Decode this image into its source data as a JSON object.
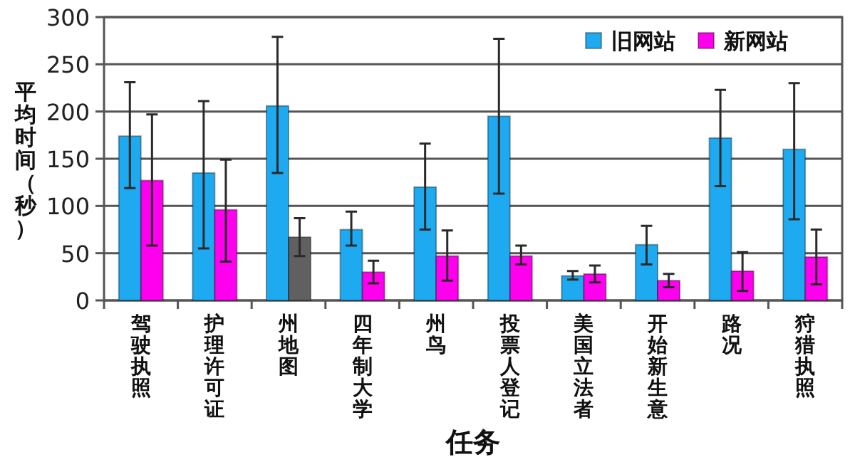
{
  "chart_data": {
    "type": "bar",
    "xlabel": "任务",
    "ylabel": "平均时间（秒）",
    "categories": [
      "驾驶执照",
      "护理许可证",
      "州地图",
      "四年制大学",
      "州鸟",
      "投票人登记",
      "美国立法者",
      "开始新生意",
      "路况",
      "狩猎执照"
    ],
    "series": [
      {
        "name": "旧网站",
        "color": "#1eaaf0",
        "values": [
          174,
          135,
          206,
          75,
          120,
          195,
          26,
          59,
          172,
          160
        ],
        "errors": [
          [
            119,
            231
          ],
          [
            55,
            211
          ],
          [
            135,
            279
          ],
          [
            58,
            94
          ],
          [
            75,
            166
          ],
          [
            113,
            277
          ],
          [
            22,
            31
          ],
          [
            38,
            79
          ],
          [
            121,
            223
          ],
          [
            86,
            230
          ]
        ]
      },
      {
        "name": "新网站",
        "color": "#ff00ee",
        "colors": [
          "#ff00ee",
          "#ff00ee",
          "#606060",
          "#ff00ee",
          "#ff00ee",
          "#ff00ee",
          "#ff00ee",
          "#ff00ee",
          "#ff00ee",
          "#ff00ee"
        ],
        "values": [
          127,
          96,
          67,
          30,
          47,
          47,
          28,
          21,
          31,
          46
        ],
        "errors": [
          [
            58,
            197
          ],
          [
            41,
            149
          ],
          [
            47,
            87
          ],
          [
            18,
            42
          ],
          [
            21,
            74
          ],
          [
            38,
            58
          ],
          [
            19,
            37
          ],
          [
            14,
            28
          ],
          [
            10,
            51
          ],
          [
            17,
            75
          ]
        ]
      }
    ],
    "ylim": [
      0,
      300
    ],
    "yticks": [
      0,
      50,
      100,
      150,
      200,
      250,
      300
    ],
    "grid": "y",
    "legend": "top right"
  }
}
